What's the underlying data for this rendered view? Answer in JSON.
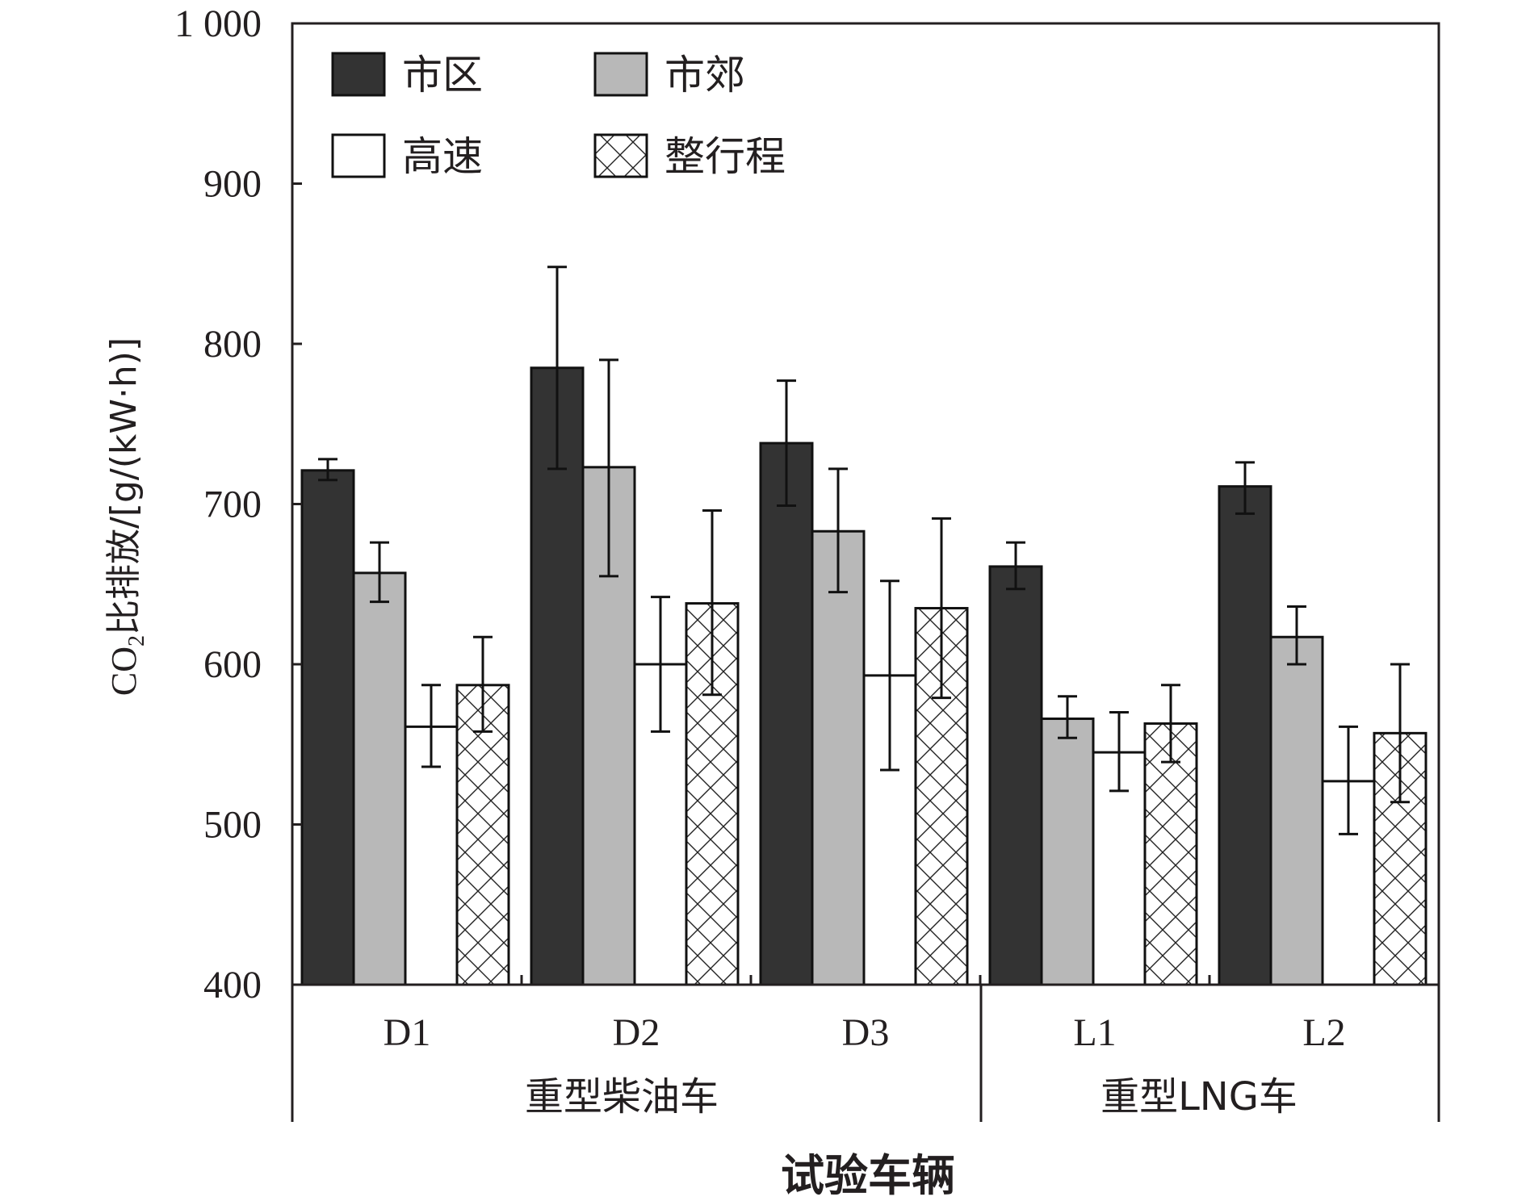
{
  "chart_data": {
    "type": "bar",
    "categories": [
      "D1",
      "D2",
      "D3",
      "L1",
      "L2"
    ],
    "groups": [
      {
        "label": "重型柴油车",
        "categories": [
          "D1",
          "D2",
          "D3"
        ]
      },
      {
        "label": "重型LNG车",
        "categories": [
          "L1",
          "L2"
        ]
      }
    ],
    "series": [
      {
        "name": "市区",
        "values": [
          721,
          785,
          738,
          661,
          711
        ],
        "err_low": [
          715,
          722,
          699,
          647,
          694
        ],
        "err_high": [
          728,
          848,
          777,
          676,
          726
        ]
      },
      {
        "name": "市郊",
        "values": [
          657,
          723,
          683,
          566,
          617
        ],
        "err_low": [
          639,
          655,
          645,
          554,
          600
        ],
        "err_high": [
          676,
          790,
          722,
          580,
          636
        ]
      },
      {
        "name": "高速",
        "values": [
          561,
          600,
          593,
          545,
          527
        ],
        "err_low": [
          536,
          558,
          534,
          521,
          494
        ],
        "err_high": [
          587,
          642,
          652,
          570,
          561
        ]
      },
      {
        "name": "整行程",
        "values": [
          587,
          638,
          635,
          563,
          557
        ],
        "err_low": [
          558,
          581,
          579,
          539,
          514
        ],
        "err_high": [
          617,
          696,
          691,
          587,
          600
        ]
      }
    ],
    "series_colors": [
      "#333333",
      "#b8b8b8",
      "#ffffff",
      "#ffffff"
    ],
    "series_patterns": [
      "solid",
      "solid",
      "none",
      "crosshatch"
    ],
    "ylim": [
      400,
      1000
    ],
    "yticks": [
      400,
      500,
      600,
      700,
      800,
      900,
      1000
    ],
    "ytick_labels": [
      "400",
      "500",
      "600",
      "700",
      "800",
      "900",
      "1 000"
    ],
    "ylabel_main": "CO",
    "ylabel_sub": "2",
    "ylabel_rest": "比排放/[g/(kW·h)]",
    "xlabel": "试验车辆",
    "legend_position": "top-left"
  }
}
